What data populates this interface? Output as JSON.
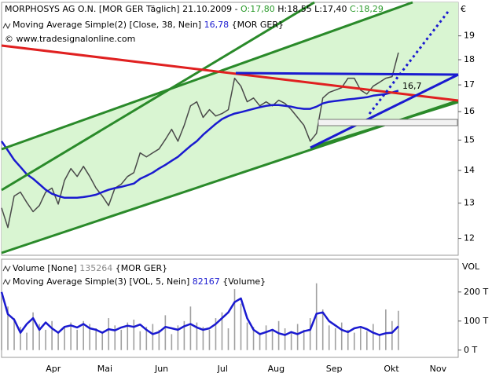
{
  "chart_data": [
    {
      "type": "line",
      "title": "MORPHOSYS AG O.N. [MOR GER  Täglich] 21.10.2009 -",
      "ohlc": [
        {
          "text": "O:17,80",
          "color": "#2a9a2a"
        },
        {
          "text": "H:18,55 L:17,40",
          "color": "#000000"
        },
        {
          "text": "C:18,29",
          "color": "#2a9a2a"
        }
      ],
      "unit": "€",
      "credit": "© www.tradesignalonline.com",
      "log_scale": true,
      "ylim": [
        11.55,
        20.5
      ],
      "yticks": [
        12,
        13,
        14,
        15,
        16,
        17,
        18,
        19
      ],
      "xlim": [
        0,
        72.5
      ],
      "series": [
        {
          "color": "#4a4a4a",
          "values": [
            12.86,
            12.3,
            13.21,
            13.33,
            13.02,
            12.75,
            12.93,
            13.33,
            13.45,
            12.97,
            13.69,
            14.06,
            13.81,
            14.13,
            13.81,
            13.45,
            13.21,
            12.93,
            13.45,
            13.57,
            13.81,
            13.93,
            14.57,
            14.44,
            14.57,
            14.7,
            15.02,
            15.37,
            14.96,
            15.51,
            16.21,
            16.36,
            15.79,
            16.07,
            15.84,
            15.93,
            16.07,
            17.26,
            16.95,
            16.36,
            16.5,
            16.21,
            16.36,
            16.21,
            16.42,
            16.3,
            16.07,
            15.79,
            15.51,
            14.96,
            15.23,
            16.5,
            16.71,
            16.8,
            16.89,
            17.26,
            17.26,
            16.8,
            16.65,
            16.95,
            17.1,
            17.26,
            17.32,
            18.29
          ]
        },
        {
          "name": "Moving Average Simple(2) [Close, 38, Nein]",
          "last_value_label": "16,78",
          "source": "{MOR GER}",
          "color": "#1a1ad0",
          "values": [
            14.96,
            14.65,
            14.34,
            14.11,
            13.88,
            13.74,
            13.57,
            13.4,
            13.28,
            13.21,
            13.16,
            13.16,
            13.16,
            13.18,
            13.21,
            13.25,
            13.33,
            13.4,
            13.45,
            13.49,
            13.54,
            13.59,
            13.74,
            13.83,
            13.93,
            14.06,
            14.18,
            14.31,
            14.44,
            14.62,
            14.8,
            14.96,
            15.18,
            15.37,
            15.56,
            15.73,
            15.84,
            15.93,
            15.98,
            16.04,
            16.1,
            16.16,
            16.21,
            16.24,
            16.24,
            16.21,
            16.18,
            16.13,
            16.1,
            16.1,
            16.18,
            16.3,
            16.36,
            16.39,
            16.42,
            16.45,
            16.47,
            16.5,
            16.53,
            16.59,
            16.62,
            16.65,
            16.71,
            16.78
          ]
        }
      ],
      "annotation": {
        "text": "16,7",
        "color": "#e03030"
      }
    },
    {
      "type": "bar",
      "unit": "VOL",
      "ylim": [
        -25000,
        313000
      ],
      "yticks": [
        {
          "value": 0,
          "label": "0 T"
        },
        {
          "value": 100000,
          "label": "100 T"
        },
        {
          "value": 200000,
          "label": "200 T"
        }
      ],
      "xlim": [
        0,
        72.5
      ],
      "xticks": [
        {
          "value": 8.2,
          "label": "Apr"
        },
        {
          "value": 16.4,
          "label": "Mai"
        },
        {
          "value": 25.4,
          "label": "Jun"
        },
        {
          "value": 35.1,
          "label": "Jul"
        },
        {
          "value": 43.6,
          "label": "Aug"
        },
        {
          "value": 52.8,
          "label": "Sep"
        },
        {
          "value": 61.9,
          "label": "Okt"
        },
        {
          "value": 69.3,
          "label": "Nov"
        }
      ],
      "series": [
        {
          "name": "Volume [None]",
          "source": "{MOR GER}",
          "color": "#a0a0a0",
          "values": [
            180000,
            150000,
            110000,
            80000,
            60000,
            130000,
            90000,
            70000,
            100000,
            60000,
            80000,
            95000,
            70000,
            100000,
            90000,
            75000,
            60000,
            110000,
            85000,
            70000,
            95000,
            105000,
            65000,
            80000,
            90000,
            70000,
            120000,
            55000,
            85000,
            100000,
            150000,
            95000,
            80000,
            70000,
            110000,
            130000,
            75000,
            210000,
            160000,
            95000,
            80000,
            60000,
            85000,
            70000,
            100000,
            75000,
            60000,
            90000,
            70000,
            110000,
            230000,
            140000,
            85000,
            75000,
            95000,
            70000,
            60000,
            80000,
            65000,
            90000,
            50000,
            140000,
            100000,
            135264
          ]
        },
        {
          "type": "line",
          "name": "Moving Average Simple(3) [VOL, 5, Nein]",
          "source": "{Volume}",
          "color": "#1a1ad0",
          "values": [
            200000,
            124000,
            105000,
            60000,
            90000,
            110000,
            70000,
            95000,
            75000,
            60000,
            80000,
            85000,
            78000,
            90000,
            75000,
            70000,
            60000,
            72000,
            68000,
            78000,
            84000,
            80000,
            88000,
            70000,
            55000,
            62000,
            80000,
            75000,
            70000,
            82000,
            90000,
            78000,
            70000,
            75000,
            90000,
            110000,
            130000,
            165000,
            178000,
            110000,
            70000,
            55000,
            62000,
            70000,
            58000,
            52000,
            62000,
            55000,
            65000,
            70000,
            125000,
            130000,
            100000,
            85000,
            70000,
            62000,
            75000,
            80000,
            72000,
            60000,
            52000,
            58000,
            60000,
            82167
          ]
        }
      ]
    }
  ]
}
